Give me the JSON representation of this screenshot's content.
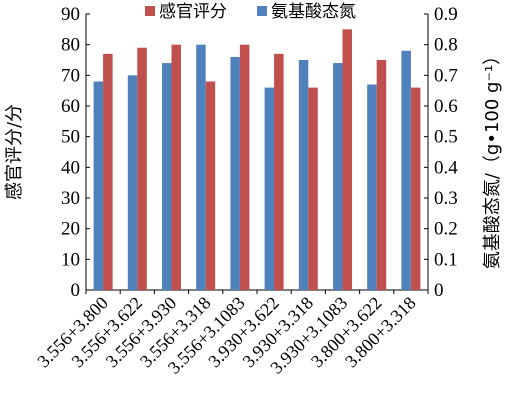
{
  "chart_data": {
    "type": "bar",
    "categories": [
      "3.556+3.800",
      "3.556+3.622",
      "3.556+3.930",
      "3.556+3.318",
      "3.556+3.1083",
      "3.930+3.622",
      "3.930+3.318",
      "3.930+3.1083",
      "3.800+3.622",
      "3.800+3.318"
    ],
    "series": [
      {
        "name": "感官评分",
        "axis": "left",
        "color": "#c0504d",
        "values": [
          77,
          79,
          80,
          68,
          80,
          77,
          66,
          85,
          75,
          66
        ]
      },
      {
        "name": "氨基酸态氮",
        "axis": "right",
        "color": "#4f81bd",
        "values": [
          0.68,
          0.7,
          0.74,
          0.8,
          0.76,
          0.66,
          0.75,
          0.74,
          0.67,
          0.78
        ]
      }
    ],
    "ylabel": "感官评分/分",
    "y2label": "氨基酸态氮/（g•100 g⁻¹）",
    "ylim": [
      0,
      90
    ],
    "y2lim": [
      0,
      0.9
    ],
    "yticks": [
      "0",
      "10",
      "20",
      "30",
      "40",
      "50",
      "60",
      "70",
      "80",
      "90"
    ],
    "y2ticks": [
      "0",
      "0.1",
      "0.2",
      "0.3",
      "0.4",
      "0.5",
      "0.6",
      "0.7",
      "0.8",
      "0.9"
    ],
    "legend_position": "top",
    "grid": false
  }
}
